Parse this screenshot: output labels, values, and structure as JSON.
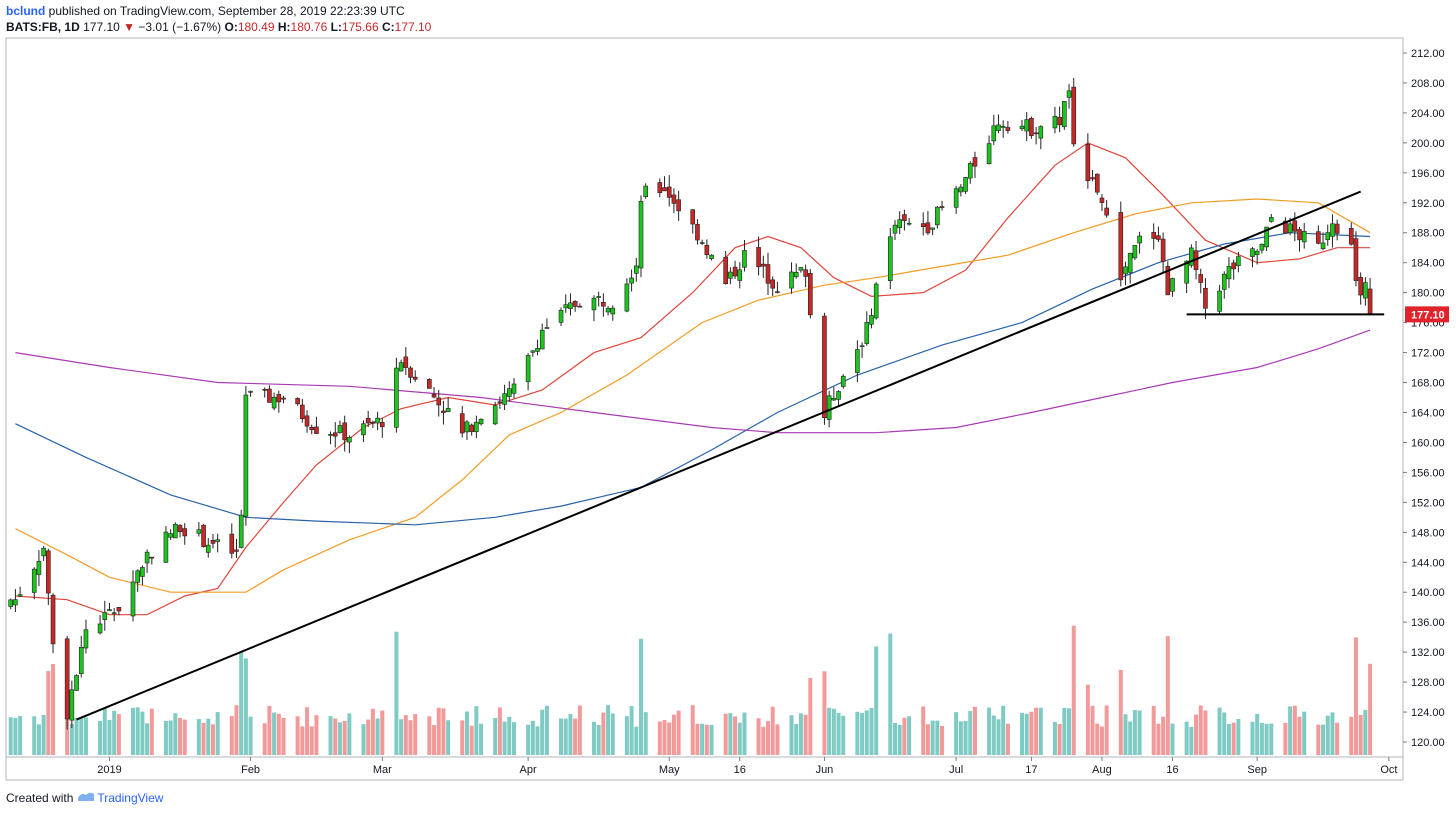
{
  "header": {
    "author": "bclund",
    "published_text": "published on TradingView.com, September 28, 2019 22:23:39 UTC",
    "symbol": "BATS:FB, 1D",
    "last": "177.10",
    "arrow": "▼",
    "change": "−3.01 (−1.67%)",
    "o_label": "O:",
    "o_value": "180.49",
    "h_label": "H:",
    "h_value": "180.76",
    "l_label": "L:",
    "l_value": "175.66",
    "c_label": "C:",
    "c_value": "177.10"
  },
  "footer": {
    "created_with": "Created with",
    "brand": "TradingView"
  },
  "colors": {
    "up": "#26a69a",
    "up_body": "#1ec41e",
    "down": "#c62828",
    "vol_up": "#7fcbc4",
    "vol_down": "#f29a9a",
    "ma20": "#e0453a",
    "ma50": "#f39c25",
    "ma100": "#2962a8",
    "ma200": "#a83bb3",
    "trendline": "#000000",
    "price_label": "#e0222a"
  },
  "chart_data": {
    "type": "candlestick",
    "title": "",
    "ylim": [
      118,
      214
    ],
    "y_ticks": [
      120,
      124,
      128,
      132,
      136,
      140,
      144,
      148,
      152,
      156,
      160,
      164,
      168,
      172,
      176,
      180,
      184,
      188,
      192,
      196,
      200,
      204,
      208,
      212
    ],
    "x_labels": [
      {
        "label": "2019",
        "x": "2019-01-02"
      },
      {
        "label": "Feb",
        "x": "2019-02-01"
      },
      {
        "label": "Mar",
        "x": "2019-03-01"
      },
      {
        "label": "Apr",
        "x": "2019-04-01"
      },
      {
        "label": "May",
        "x": "2019-05-01"
      },
      {
        "label": "16",
        "x": "2019-05-16"
      },
      {
        "label": "Jun",
        "x": "2019-06-03"
      },
      {
        "label": "Jul",
        "x": "2019-07-01"
      },
      {
        "label": "17",
        "x": "2019-07-17"
      },
      {
        "label": "Aug",
        "x": "2019-08-01"
      },
      {
        "label": "16",
        "x": "2019-08-16"
      },
      {
        "label": "Sep",
        "x": "2019-09-03"
      },
      {
        "label": "Oct",
        "x": "2019-10-01"
      }
    ],
    "last_price_label": "177.10",
    "candle_keypoints": [
      {
        "x": "2018-12-13",
        "close": 139
      },
      {
        "x": "2018-12-19",
        "close": 146
      },
      {
        "x": "2018-12-21",
        "close": 133
      },
      {
        "x": "2018-12-24",
        "close": 124
      },
      {
        "x": "2018-12-28",
        "close": 135
      },
      {
        "x": "2019-01-04",
        "close": 138
      },
      {
        "x": "2019-01-10",
        "close": 145
      },
      {
        "x": "2019-01-17",
        "close": 149
      },
      {
        "x": "2019-01-22",
        "close": 147
      },
      {
        "x": "2019-01-29",
        "close": 145
      },
      {
        "x": "2019-01-30",
        "close": 150
      },
      {
        "x": "2019-01-31",
        "close": 166
      },
      {
        "x": "2019-02-08",
        "close": 166
      },
      {
        "x": "2019-02-15",
        "close": 162
      },
      {
        "x": "2019-02-22",
        "close": 161
      },
      {
        "x": "2019-03-01",
        "close": 163
      },
      {
        "x": "2019-03-05",
        "close": 171
      },
      {
        "x": "2019-03-08",
        "close": 169
      },
      {
        "x": "2019-03-15",
        "close": 164
      },
      {
        "x": "2019-03-18",
        "close": 161
      },
      {
        "x": "2019-03-22",
        "close": 164
      },
      {
        "x": "2019-03-29",
        "close": 167
      },
      {
        "x": "2019-04-04",
        "close": 175
      },
      {
        "x": "2019-04-12",
        "close": 179
      },
      {
        "x": "2019-04-19",
        "close": 179
      },
      {
        "x": "2019-04-24",
        "close": 184
      },
      {
        "x": "2019-04-25",
        "close": 193
      },
      {
        "x": "2019-04-30",
        "close": 194
      },
      {
        "x": "2019-05-08",
        "close": 187
      },
      {
        "x": "2019-05-13",
        "close": 181
      },
      {
        "x": "2019-05-17",
        "close": 185
      },
      {
        "x": "2019-05-24",
        "close": 181
      },
      {
        "x": "2019-05-30",
        "close": 183
      },
      {
        "x": "2019-05-31",
        "close": 177
      },
      {
        "x": "2019-06-03",
        "close": 164
      },
      {
        "x": "2019-06-07",
        "close": 169
      },
      {
        "x": "2019-06-12",
        "close": 175
      },
      {
        "x": "2019-06-14",
        "close": 181
      },
      {
        "x": "2019-06-18",
        "close": 189
      },
      {
        "x": "2019-06-25",
        "close": 189
      },
      {
        "x": "2019-07-02",
        "close": 194
      },
      {
        "x": "2019-07-10",
        "close": 203
      },
      {
        "x": "2019-07-17",
        "close": 202
      },
      {
        "x": "2019-07-23",
        "close": 203
      },
      {
        "x": "2019-07-25",
        "close": 207
      },
      {
        "x": "2019-07-26",
        "close": 199
      },
      {
        "x": "2019-07-31",
        "close": 194
      },
      {
        "x": "2019-08-01",
        "close": 192
      },
      {
        "x": "2019-08-05",
        "close": 182
      },
      {
        "x": "2019-08-09",
        "close": 187
      },
      {
        "x": "2019-08-13",
        "close": 188
      },
      {
        "x": "2019-08-15",
        "close": 180
      },
      {
        "x": "2019-08-20",
        "close": 185
      },
      {
        "x": "2019-08-23",
        "close": 178
      },
      {
        "x": "2019-08-28",
        "close": 183
      },
      {
        "x": "2019-09-04",
        "close": 186
      },
      {
        "x": "2019-09-06",
        "close": 190
      },
      {
        "x": "2019-09-11",
        "close": 188
      },
      {
        "x": "2019-09-16",
        "close": 186
      },
      {
        "x": "2019-09-19",
        "close": 190
      },
      {
        "x": "2019-09-23",
        "close": 186
      },
      {
        "x": "2019-09-24",
        "close": 181
      },
      {
        "x": "2019-09-26",
        "close": 180.49
      },
      {
        "x": "2019-09-27",
        "close": 177.1
      }
    ],
    "series": [
      {
        "key": "ma20",
        "points": [
          {
            "x": "2018-12-13",
            "y": 139.5
          },
          {
            "x": "2018-12-24",
            "y": 139
          },
          {
            "x": "2019-01-02",
            "y": 137
          },
          {
            "x": "2019-01-10",
            "y": 137
          },
          {
            "x": "2019-01-18",
            "y": 139.5
          },
          {
            "x": "2019-01-25",
            "y": 140.5
          },
          {
            "x": "2019-01-31",
            "y": 146
          },
          {
            "x": "2019-02-08",
            "y": 152
          },
          {
            "x": "2019-02-15",
            "y": 157
          },
          {
            "x": "2019-02-25",
            "y": 162
          },
          {
            "x": "2019-03-05",
            "y": 164.5
          },
          {
            "x": "2019-03-15",
            "y": 166
          },
          {
            "x": "2019-03-25",
            "y": 165
          },
          {
            "x": "2019-04-04",
            "y": 167
          },
          {
            "x": "2019-04-15",
            "y": 172
          },
          {
            "x": "2019-04-25",
            "y": 174
          },
          {
            "x": "2019-05-06",
            "y": 180
          },
          {
            "x": "2019-05-15",
            "y": 186
          },
          {
            "x": "2019-05-22",
            "y": 187.5
          },
          {
            "x": "2019-05-29",
            "y": 186
          },
          {
            "x": "2019-06-05",
            "y": 182
          },
          {
            "x": "2019-06-13",
            "y": 179.5
          },
          {
            "x": "2019-06-24",
            "y": 180
          },
          {
            "x": "2019-07-03",
            "y": 183
          },
          {
            "x": "2019-07-12",
            "y": 190
          },
          {
            "x": "2019-07-22",
            "y": 197
          },
          {
            "x": "2019-07-29",
            "y": 200
          },
          {
            "x": "2019-08-06",
            "y": 198
          },
          {
            "x": "2019-08-14",
            "y": 193
          },
          {
            "x": "2019-08-23",
            "y": 187
          },
          {
            "x": "2019-09-03",
            "y": 184
          },
          {
            "x": "2019-09-12",
            "y": 184.5
          },
          {
            "x": "2019-09-20",
            "y": 186
          },
          {
            "x": "2019-09-27",
            "y": 186
          }
        ]
      },
      {
        "key": "ma50",
        "points": [
          {
            "x": "2018-12-13",
            "y": 148.5
          },
          {
            "x": "2018-12-24",
            "y": 145
          },
          {
            "x": "2019-01-02",
            "y": 142
          },
          {
            "x": "2019-01-15",
            "y": 140
          },
          {
            "x": "2019-01-31",
            "y": 140
          },
          {
            "x": "2019-02-08",
            "y": 143
          },
          {
            "x": "2019-02-22",
            "y": 147
          },
          {
            "x": "2019-03-08",
            "y": 150
          },
          {
            "x": "2019-03-18",
            "y": 155
          },
          {
            "x": "2019-03-28",
            "y": 161
          },
          {
            "x": "2019-04-08",
            "y": 164
          },
          {
            "x": "2019-04-22",
            "y": 169
          },
          {
            "x": "2019-05-08",
            "y": 176
          },
          {
            "x": "2019-05-20",
            "y": 179
          },
          {
            "x": "2019-06-03",
            "y": 181
          },
          {
            "x": "2019-06-14",
            "y": 182
          },
          {
            "x": "2019-06-28",
            "y": 183.5
          },
          {
            "x": "2019-07-12",
            "y": 185
          },
          {
            "x": "2019-07-26",
            "y": 188
          },
          {
            "x": "2019-08-08",
            "y": 190.5
          },
          {
            "x": "2019-08-20",
            "y": 192
          },
          {
            "x": "2019-09-03",
            "y": 192.5
          },
          {
            "x": "2019-09-16",
            "y": 192
          },
          {
            "x": "2019-09-27",
            "y": 188
          }
        ]
      },
      {
        "key": "ma100",
        "points": [
          {
            "x": "2018-12-13",
            "y": 162.5
          },
          {
            "x": "2018-12-28",
            "y": 158
          },
          {
            "x": "2019-01-15",
            "y": 153
          },
          {
            "x": "2019-01-31",
            "y": 150
          },
          {
            "x": "2019-02-15",
            "y": 149.5
          },
          {
            "x": "2019-03-08",
            "y": 149
          },
          {
            "x": "2019-03-25",
            "y": 150
          },
          {
            "x": "2019-04-08",
            "y": 151.5
          },
          {
            "x": "2019-04-25",
            "y": 154
          },
          {
            "x": "2019-05-10",
            "y": 159
          },
          {
            "x": "2019-05-24",
            "y": 164
          },
          {
            "x": "2019-06-10",
            "y": 169
          },
          {
            "x": "2019-06-28",
            "y": 173
          },
          {
            "x": "2019-07-15",
            "y": 176
          },
          {
            "x": "2019-07-30",
            "y": 180.5
          },
          {
            "x": "2019-08-13",
            "y": 184
          },
          {
            "x": "2019-08-27",
            "y": 186.5
          },
          {
            "x": "2019-09-10",
            "y": 188
          },
          {
            "x": "2019-09-27",
            "y": 187.5
          }
        ]
      },
      {
        "key": "ma200",
        "points": [
          {
            "x": "2018-12-13",
            "y": 172
          },
          {
            "x": "2019-01-02",
            "y": 170
          },
          {
            "x": "2019-01-25",
            "y": 168
          },
          {
            "x": "2019-02-22",
            "y": 167.5
          },
          {
            "x": "2019-03-22",
            "y": 166
          },
          {
            "x": "2019-04-15",
            "y": 164
          },
          {
            "x": "2019-05-10",
            "y": 162
          },
          {
            "x": "2019-05-24",
            "y": 161.3
          },
          {
            "x": "2019-06-14",
            "y": 161.3
          },
          {
            "x": "2019-07-01",
            "y": 162
          },
          {
            "x": "2019-07-17",
            "y": 164
          },
          {
            "x": "2019-08-01",
            "y": 166
          },
          {
            "x": "2019-08-16",
            "y": 168
          },
          {
            "x": "2019-09-03",
            "y": 170
          },
          {
            "x": "2019-09-16",
            "y": 172.5
          },
          {
            "x": "2019-09-27",
            "y": 175
          }
        ]
      }
    ],
    "trendlines": [
      {
        "x1": "2018-12-26",
        "y1": 123,
        "x2": "2019-09-25",
        "y2": 193.5
      },
      {
        "x1": "2019-08-19",
        "y1": 177.1,
        "x2": "2019-09-30",
        "y2": 177.1
      }
    ],
    "volume_note": "volume bars shown at the bottom of the chart"
  }
}
